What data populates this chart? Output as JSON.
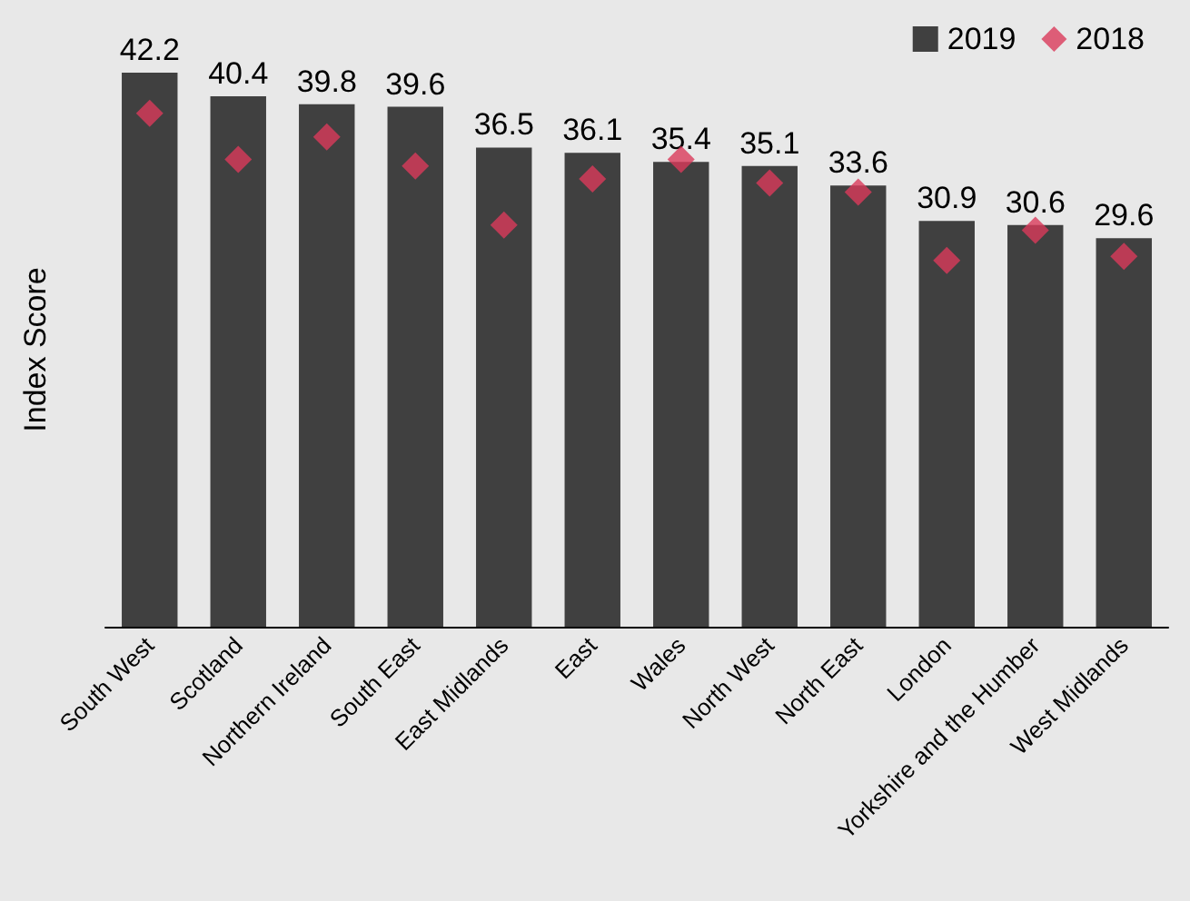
{
  "chart_data": {
    "type": "bar",
    "ylabel": "Index Score",
    "legend": "top right",
    "grid": false,
    "categories": [
      "South West",
      "Scotland",
      "Northern Ireland",
      "South East",
      "East Midlands",
      "East",
      "Wales",
      "North West",
      "North East",
      "London",
      "Yorkshire and the Humber",
      "West Midlands"
    ],
    "series": [
      {
        "name": "2019",
        "color": "#404040",
        "values": [
          42.2,
          40.4,
          39.8,
          39.6,
          36.5,
          36.1,
          35.4,
          35.1,
          33.6,
          30.9,
          30.6,
          29.6
        ],
        "value_labels": [
          "42.2",
          "40.4",
          "39.8",
          "39.6",
          "36.5",
          "36.1",
          "35.4",
          "35.1",
          "33.6",
          "30.9",
          "30.6",
          "29.6"
        ]
      },
      {
        "name": "2018",
        "type": "scatter",
        "color": "#d9395a",
        "marker": "diamond",
        "values": [
          39.1,
          35.6,
          37.3,
          35.1,
          30.6,
          34.1,
          35.6,
          33.8,
          33.1,
          27.9,
          30.2,
          28.2
        ]
      }
    ]
  }
}
